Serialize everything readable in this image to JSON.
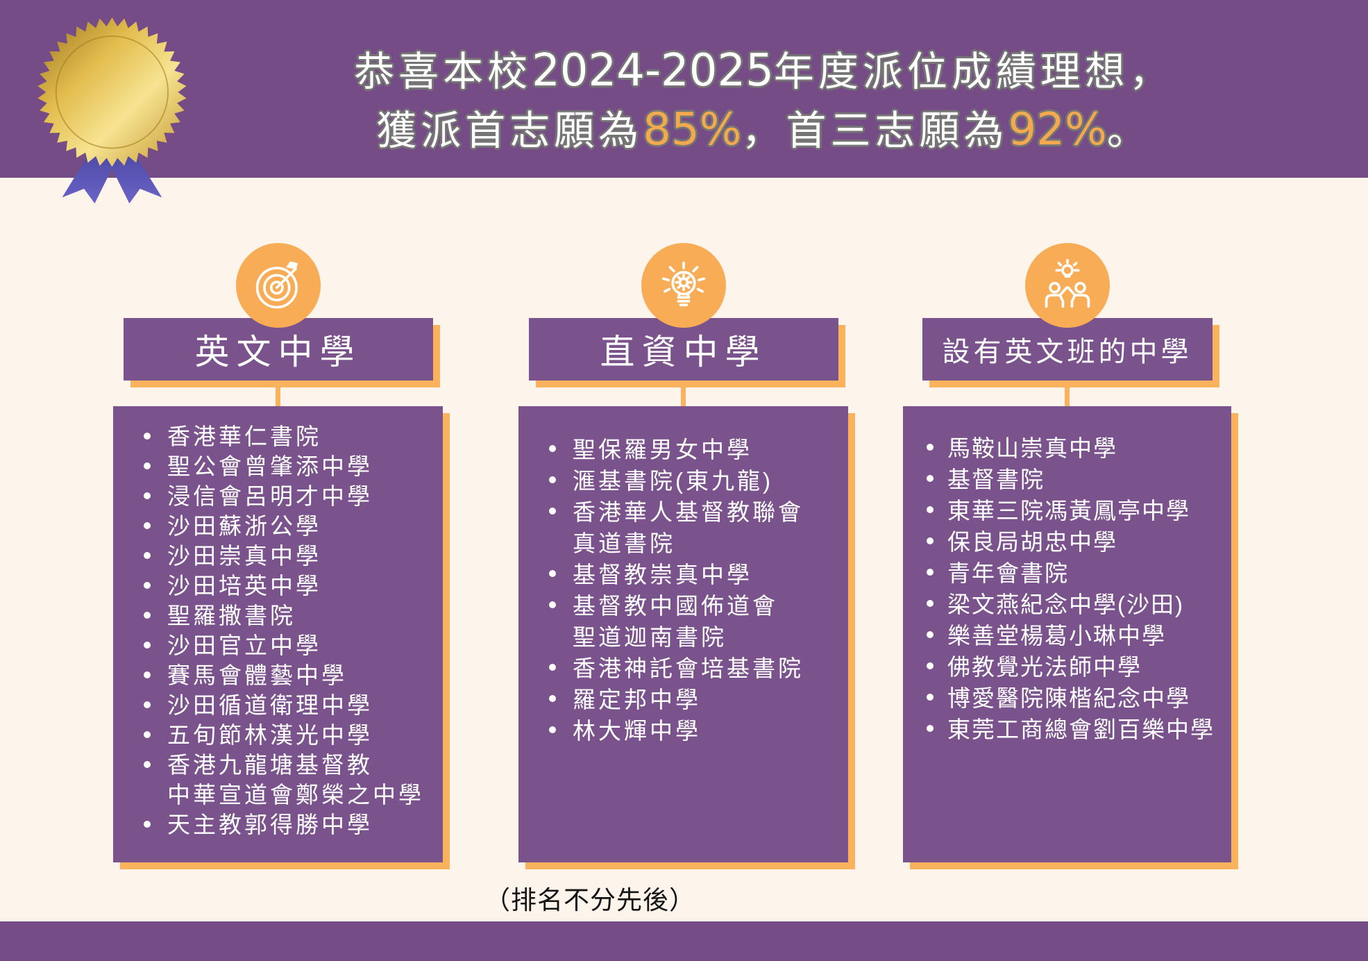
{
  "colors": {
    "purple_header": "#764C86",
    "purple_box": "#7B538C",
    "orange": "#FBB25C",
    "orange_icon": "#F8AC55",
    "cream": "#FDF4EC",
    "accent_pct": "#F5A94F",
    "outline_gray": "#757575",
    "note_text": "#141414"
  },
  "header": {
    "line1_prefix": "恭喜本校",
    "line1_years": "2024-2025",
    "line1_suffix": "年度派位成績理想，",
    "line2_prefix": "獲派首志願為",
    "line2_pct1": "85%",
    "line2_mid": "，首三志願為",
    "line2_pct2": "92%",
    "line2_suffix": "。"
  },
  "columns": [
    {
      "icon": "target-icon",
      "title": "英文中學",
      "schools": [
        "香港華仁書院",
        "聖公會曾肇添中學",
        "浸信會呂明才中學",
        "沙田蘇浙公學",
        "沙田崇真中學",
        "沙田培英中學",
        "聖羅撒書院",
        "沙田官立中學",
        "賽馬會體藝中學",
        "沙田循道衛理中學",
        "五旬節林漢光中學",
        "香港九龍塘基督教\n中華宣道會鄭榮之中學",
        "天主教郭得勝中學"
      ]
    },
    {
      "icon": "lightbulb-gear-icon",
      "title": "直資中學",
      "schools": [
        "聖保羅男女中學",
        "滙基書院(東九龍)",
        "香港華人基督教聯會\n真道書院",
        "基督教崇真中學",
        "基督教中國佈道會\n聖道迦南書院",
        "香港神託會培基書院",
        "羅定邦中學",
        "林大輝中學"
      ]
    },
    {
      "icon": "highfive-idea-icon",
      "title": "設有英文班的中學",
      "schools": [
        "馬鞍山崇真中學",
        "基督書院",
        "東華三院馮黃鳳亭中學",
        "保良局胡忠中學",
        "青年會書院",
        "梁文燕紀念中學(沙田)",
        "樂善堂楊葛小琳中學",
        "佛教覺光法師中學",
        "博愛醫院陳楷紀念中學",
        "東莞工商總會劉百樂中學"
      ]
    }
  ],
  "footer_note": "（排名不分先後）"
}
